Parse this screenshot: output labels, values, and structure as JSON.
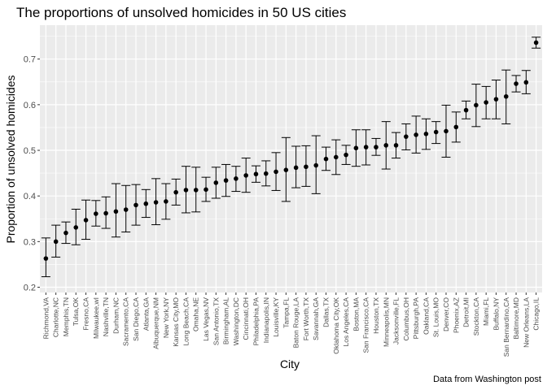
{
  "chart_data": {
    "type": "scatter",
    "title": "The proportions of unsolved homicides in 50 US cities",
    "xlabel": "City",
    "ylabel": "Proportion of unsolved homicides",
    "caption": "Data from Washington post",
    "ylim": [
      0.2,
      0.75
    ],
    "yticks": [
      "0.2",
      "0.3",
      "0.4",
      "0.5",
      "0.6",
      "0.7"
    ],
    "grid": true,
    "legend": "none",
    "colors": {
      "panel": "#ebebeb",
      "grid": "#ffffff",
      "point": "#000000"
    },
    "categories": [
      "Richmond,VA",
      "Charlotte,NC",
      "Memphis,TN",
      "Tulsa,OK",
      "Fresno,CA",
      "Milwaukee,wI",
      "Nashville,TN",
      "Durham,NC",
      "Sacramento,CA",
      "San Diego,CA",
      "Atlanta,GA",
      "Albuquerque,NM",
      "New York,NY",
      "Kansas City,MO",
      "Long Beach,CA",
      "Omaha,NE",
      "Las Vegas,NV",
      "San Antonio,TX",
      "Birmingham,AL",
      "Washington,DC",
      "Cincinnati,OH",
      "Philadelphia,PA",
      "Indianapolis,IN",
      "Louisville,KY",
      "Tampa,FL",
      "Baton Rouge,LA",
      "Fort Worth,TX",
      "Savannah,GA",
      "Dallas,TX",
      "Oklahoma City,OK",
      "Los Angeles,CA",
      "Boston,MA",
      "San Francisco,CA",
      "Houston,TX",
      "Minneapolis,MN",
      "Jacksonville,FL",
      "Columbus,OH",
      "Pittsburgh,PA",
      "Oakland,CA",
      "St. Louis,MO",
      "Denver,CO",
      "Phoenix,AZ",
      "Detroit,MI",
      "Stockton,CA",
      "Miami,FL",
      "Buffalo,NY",
      "San Bernardino,CA",
      "Baltimore,MD",
      "New Orleans,LA",
      "Chicago,IL"
    ],
    "series": [
      {
        "estimate": [
          0.263,
          0.3,
          0.319,
          0.331,
          0.347,
          0.361,
          0.362,
          0.366,
          0.37,
          0.38,
          0.383,
          0.386,
          0.388,
          0.408,
          0.413,
          0.413,
          0.414,
          0.429,
          0.434,
          0.438,
          0.445,
          0.448,
          0.449,
          0.453,
          0.457,
          0.462,
          0.464,
          0.467,
          0.481,
          0.485,
          0.49,
          0.505,
          0.507,
          0.507,
          0.511,
          0.511,
          0.53,
          0.534,
          0.536,
          0.54,
          0.542,
          0.551,
          0.588,
          0.599,
          0.605,
          0.612,
          0.618,
          0.646,
          0.649,
          0.736
        ],
        "lower": [
          0.223,
          0.266,
          0.296,
          0.293,
          0.305,
          0.334,
          0.329,
          0.31,
          0.321,
          0.336,
          0.353,
          0.337,
          0.349,
          0.38,
          0.363,
          0.365,
          0.388,
          0.395,
          0.399,
          0.41,
          0.408,
          0.43,
          0.422,
          0.412,
          0.388,
          0.418,
          0.421,
          0.405,
          0.456,
          0.447,
          0.469,
          0.465,
          0.468,
          0.489,
          0.459,
          0.483,
          0.501,
          0.494,
          0.502,
          0.515,
          0.485,
          0.518,
          0.569,
          0.552,
          0.569,
          0.569,
          0.558,
          0.628,
          0.624,
          0.724
        ],
        "upper": [
          0.308,
          0.336,
          0.343,
          0.371,
          0.391,
          0.39,
          0.398,
          0.427,
          0.423,
          0.425,
          0.414,
          0.438,
          0.427,
          0.437,
          0.465,
          0.463,
          0.441,
          0.463,
          0.469,
          0.465,
          0.483,
          0.466,
          0.477,
          0.495,
          0.528,
          0.509,
          0.51,
          0.532,
          0.507,
          0.523,
          0.511,
          0.545,
          0.545,
          0.526,
          0.563,
          0.539,
          0.558,
          0.575,
          0.569,
          0.563,
          0.599,
          0.584,
          0.608,
          0.645,
          0.64,
          0.654,
          0.676,
          0.664,
          0.675,
          0.748
        ]
      }
    ]
  }
}
